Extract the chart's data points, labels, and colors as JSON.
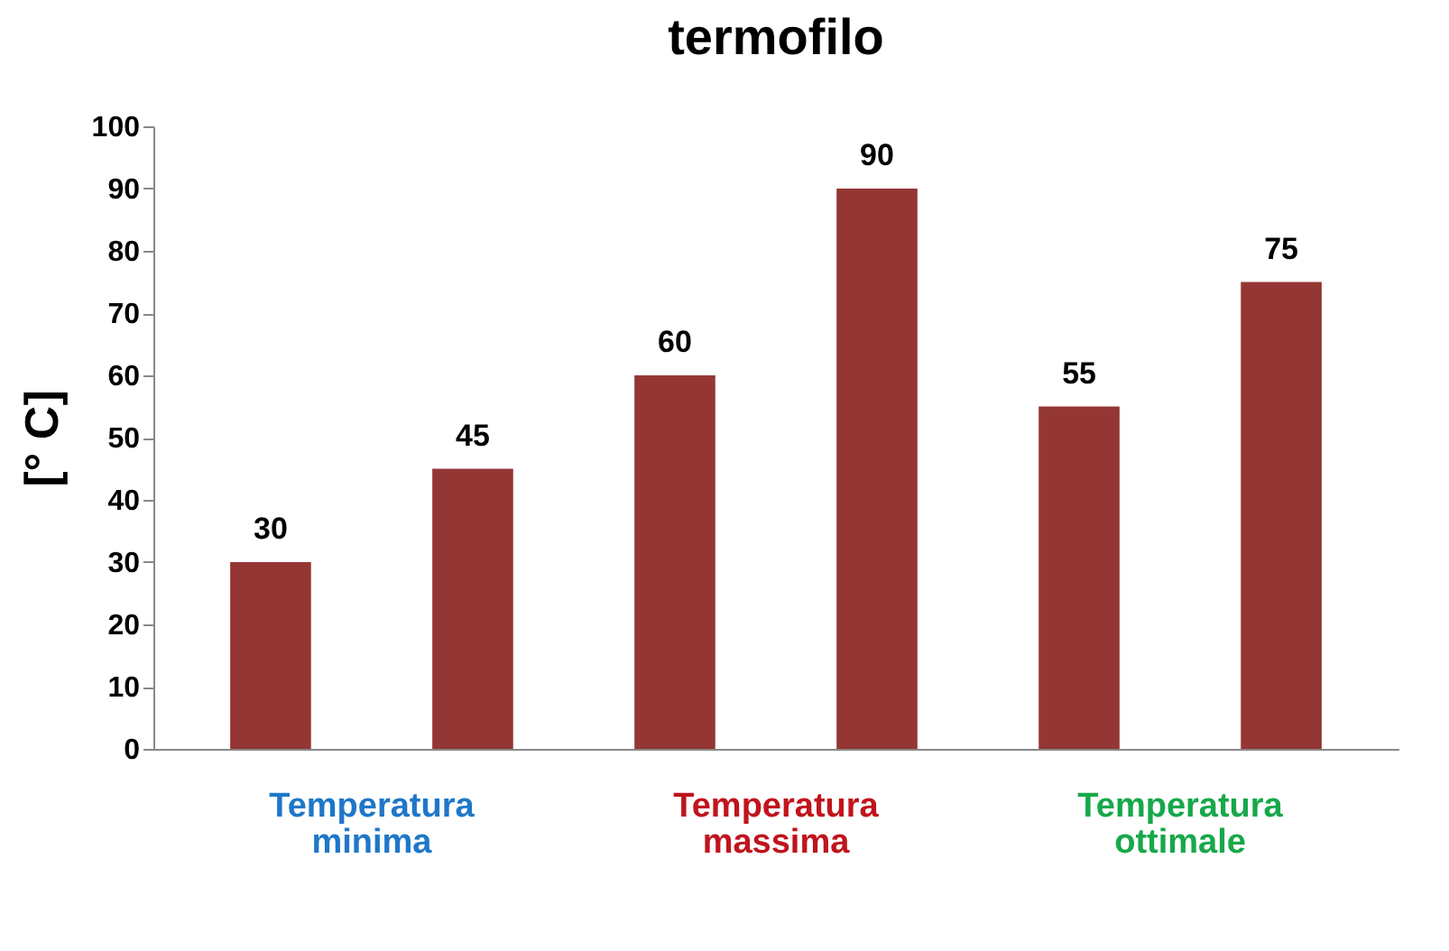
{
  "chart_data": {
    "type": "bar",
    "title": "termofilo",
    "ylabel": "[° C]",
    "categories": [
      "Temperatura minima",
      "Temperatura massima",
      "Temperatura ottimale"
    ],
    "series": [
      {
        "color": "#943634",
        "values": [
          30,
          60,
          55
        ]
      },
      {
        "color": "#943634",
        "values": [
          45,
          90,
          75
        ]
      }
    ],
    "ylim": [
      0,
      100
    ],
    "yticks": [
      0,
      10,
      20,
      30,
      40,
      50,
      60,
      70,
      80,
      90,
      100
    ],
    "grid": false,
    "legend": false,
    "data_labels": true
  }
}
